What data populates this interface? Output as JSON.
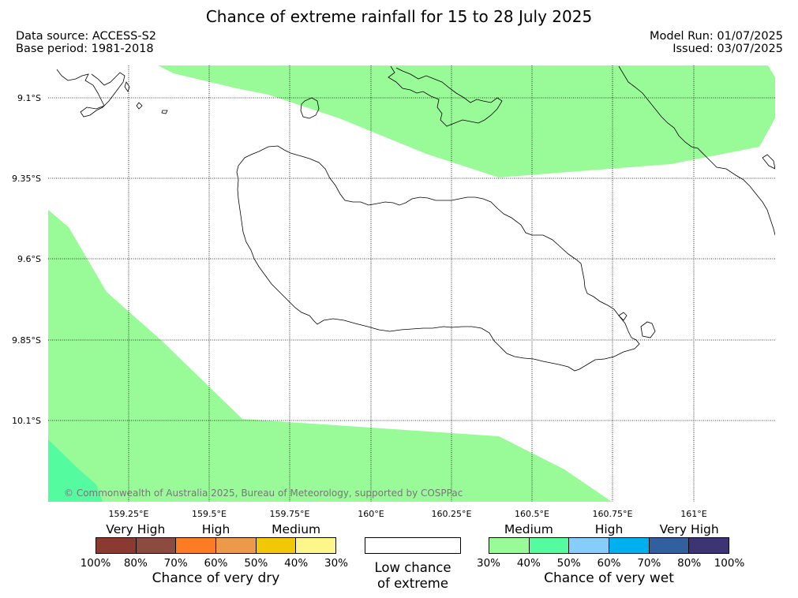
{
  "header": {
    "title": "Chance of extreme rainfall for 15 to 28 July 2025",
    "data_source": "Data source: ACCESS-S2",
    "base_period": "Base period: 1981-2018",
    "model_run": "Model Run: 01/07/2025",
    "issued": "Issued: 03/07/2025"
  },
  "map": {
    "lat_labels": [
      "9.1°S",
      "9.35°S",
      "9.6°S",
      "9.85°S",
      "10.1°S"
    ],
    "lon_labels": [
      "159.25°E",
      "159.5°E",
      "159.75°E",
      "160°E",
      "160.25°E",
      "160.5°E",
      "160.75°E",
      "161°E"
    ],
    "copyright": "© Commonwealth of Australia 2025, Bureau of Meteorology, supported by COSPPac",
    "regions": [
      {
        "category": "Medium (wet)",
        "color": "#99fb98"
      },
      {
        "category": "Medium-High (wet)",
        "color": "#55fb9f"
      }
    ]
  },
  "legend": {
    "dry": {
      "categories": [
        "Very High",
        "High",
        "Medium"
      ],
      "colors": [
        "#8b3a32",
        "#8b4b3e",
        "#fc7c24",
        "#ec9a4a",
        "#f0c806",
        "#fdf68b"
      ],
      "ticks": [
        "100%",
        "80%",
        "70%",
        "60%",
        "50%",
        "40%",
        "30%"
      ],
      "label": "Chance of very dry"
    },
    "low": {
      "label_line1": "Low chance",
      "label_line2": "of extreme",
      "color": "#ffffff"
    },
    "wet": {
      "categories": [
        "Medium",
        "High",
        "Very High"
      ],
      "colors": [
        "#99fb98",
        "#55fb9f",
        "#87cdfa",
        "#00b0ee",
        "#325f9d",
        "#3c3473"
      ],
      "ticks": [
        "30%",
        "40%",
        "50%",
        "60%",
        "70%",
        "80%",
        "100%"
      ],
      "label": "Chance of very wet"
    }
  }
}
